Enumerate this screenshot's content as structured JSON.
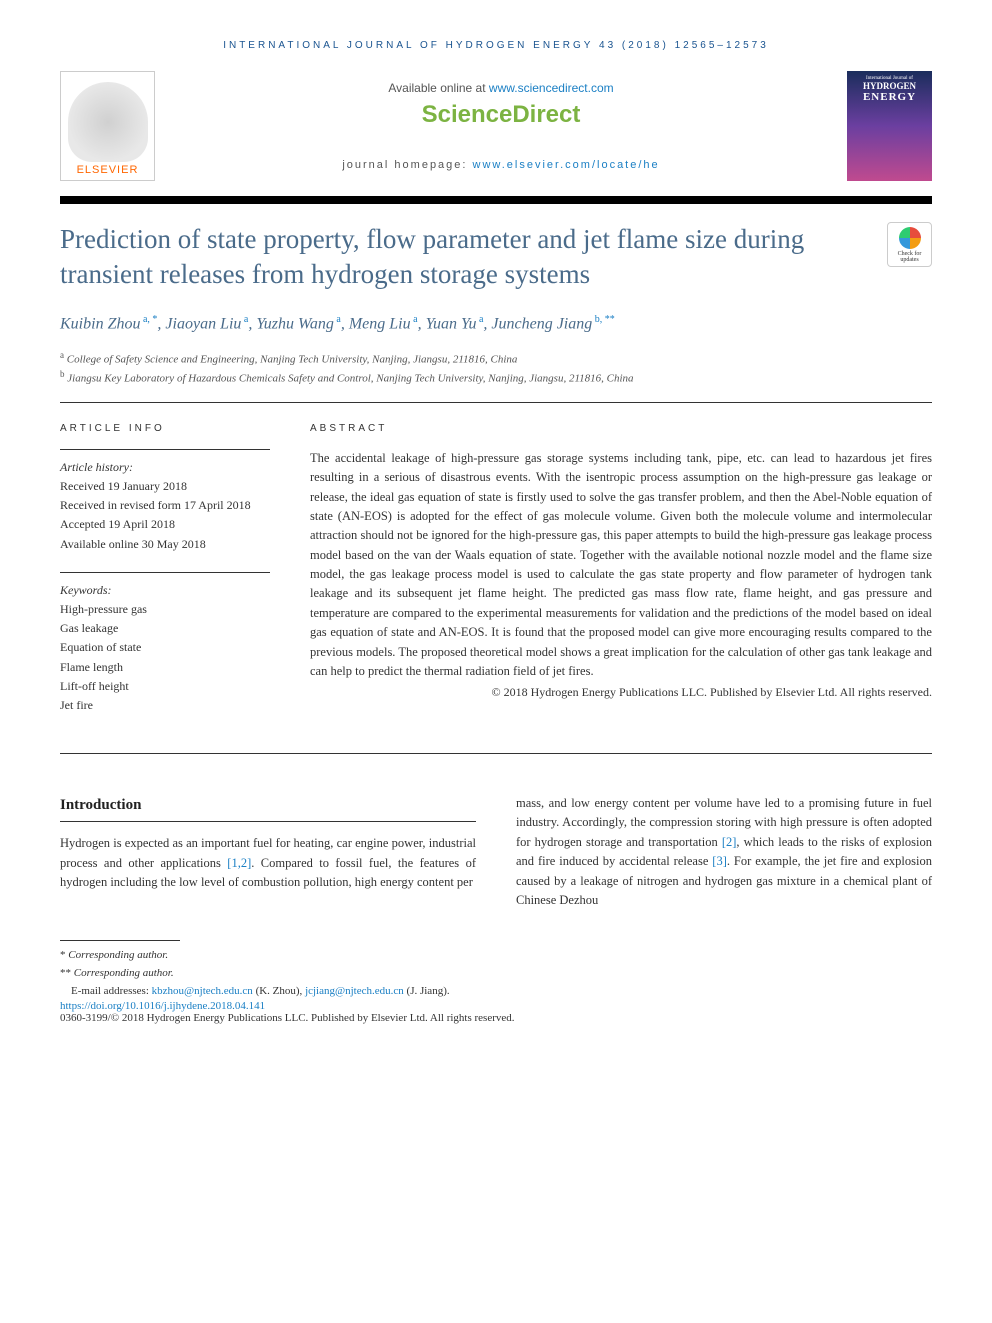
{
  "running_head": "INTERNATIONAL JOURNAL OF HYDROGEN ENERGY 43 (2018) 12565–12573",
  "header": {
    "elsevier": "ELSEVIER",
    "available_online_prefix": "Available online at ",
    "available_online_link": "www.sciencedirect.com",
    "sciencedirect": "ScienceDirect",
    "journal_homepage_prefix": "journal homepage: ",
    "journal_homepage_link": "www.elsevier.com/locate/he",
    "cover_line1": "International Journal of",
    "cover_line2": "HYDROGEN",
    "cover_line3": "ENERGY"
  },
  "check_updates": "Check for updates",
  "title": "Prediction of state property, flow parameter and jet flame size during transient releases from hydrogen storage systems",
  "authors": {
    "a1_name": "Kuibin Zhou",
    "a1_sup": " a, *",
    "a2_name": "Jiaoyan Liu",
    "a2_sup": " a",
    "a3_name": "Yuzhu Wang",
    "a3_sup": " a",
    "a4_name": "Meng Liu",
    "a4_sup": " a",
    "a5_name": "Yuan Yu",
    "a5_sup": " a",
    "a6_name": "Juncheng Jiang",
    "a6_sup": " b, **"
  },
  "affiliations": {
    "a_sup": "a",
    "a_text": " College of Safety Science and Engineering, Nanjing Tech University, Nanjing, Jiangsu, 211816, China",
    "b_sup": "b",
    "b_text": " Jiangsu Key Laboratory of Hazardous Chemicals Safety and Control, Nanjing Tech University, Nanjing, Jiangsu, 211816, China"
  },
  "article_info": {
    "heading": "ARTICLE INFO",
    "history_label": "Article history:",
    "received": "Received 19 January 2018",
    "revised": "Received in revised form 17 April 2018",
    "accepted": "Accepted 19 April 2018",
    "online": "Available online 30 May 2018",
    "keywords_label": "Keywords:",
    "k1": "High-pressure gas",
    "k2": "Gas leakage",
    "k3": "Equation of state",
    "k4": "Flame length",
    "k5": "Lift-off height",
    "k6": "Jet fire"
  },
  "abstract": {
    "heading": "ABSTRACT",
    "text": "The accidental leakage of high-pressure gas storage systems including tank, pipe, etc. can lead to hazardous jet fires resulting in a serious of disastrous events. With the isentropic process assumption on the high-pressure gas leakage or release, the ideal gas equation of state is firstly used to solve the gas transfer problem, and then the Abel-Noble equation of state (AN-EOS) is adopted for the effect of gas molecule volume. Given both the molecule volume and intermolecular attraction should not be ignored for the high-pressure gas, this paper attempts to build the high-pressure gas leakage process model based on the van der Waals equation of state. Together with the available notional nozzle model and the flame size model, the gas leakage process model is used to calculate the gas state property and flow parameter of hydrogen tank leakage and its subsequent jet flame height. The predicted gas mass flow rate, flame height, and gas pressure and temperature are compared to the experimental measurements for validation and the predictions of the model based on ideal gas equation of state and AN-EOS. It is found that the proposed model can give more encouraging results compared to the previous models. The proposed theoretical model shows a great implication for the calculation of other gas tank leakage and can help to predict the thermal radiation field of jet fires.",
    "copyright": "© 2018 Hydrogen Energy Publications LLC. Published by Elsevier Ltd. All rights reserved."
  },
  "introduction": {
    "heading": "Introduction",
    "col1_pre": "Hydrogen is expected as an important fuel for heating, car engine power, industrial process and other applications ",
    "col1_ref": "[1,2]",
    "col1_post": ". Compared to fossil fuel, the features of hydrogen including the low level of combustion pollution, high energy content per",
    "col2_pre": "mass, and low energy content per volume have led to a promising future in fuel industry. Accordingly, the compression storing with high pressure is often adopted for hydrogen storage and transportation ",
    "col2_ref1": "[2]",
    "col2_mid": ", which leads to the risks of explosion and fire induced by accidental release ",
    "col2_ref2": "[3]",
    "col2_post": ". For example, the jet fire and explosion caused by a leakage of nitrogen and hydrogen gas mixture in a chemical plant of Chinese Dezhou"
  },
  "footnotes": {
    "star1": "*",
    "corr1": " Corresponding author.",
    "star2": "**",
    "corr2": " Corresponding author.",
    "email_label": "E-mail addresses: ",
    "email1": "kbzhou@njtech.edu.cn",
    "name1": " (K. Zhou), ",
    "email2": "jcjiang@njtech.edu.cn",
    "name2": " (J. Jiang).",
    "doi": "https://doi.org/10.1016/j.ijhydene.2018.04.141",
    "copyright": "0360-3199/© 2018 Hydrogen Energy Publications LLC. Published by Elsevier Ltd. All rights reserved."
  }
}
